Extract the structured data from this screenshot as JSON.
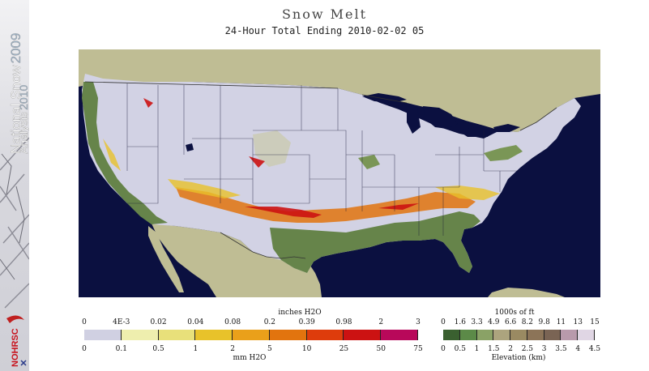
{
  "header": {
    "title": "Snow Melt",
    "subtitle": "24-Hour Total Ending 2010-02-02 05"
  },
  "sidebar": {
    "brand_prefix": "National Snow",
    "brand_year1": "2009",
    "brand_line2": "Analysis",
    "brand_year2": "2010",
    "logo_text": "NOHRSC"
  },
  "colors": {
    "ocean": "#0b1040",
    "land_other": "#bfbd94",
    "lakes": "#0b1040",
    "snow_background": "#d2d2e4",
    "lowland_green": "#66844a"
  },
  "melt_legend": {
    "unit_top": "inches H2O",
    "unit_bottom": "mm H2O",
    "inch_labels": [
      "0",
      "4E-3",
      "0.02",
      "0.04",
      "0.08",
      "0.2",
      "0.39",
      "0.98",
      "2",
      "3"
    ],
    "mm_labels": [
      "0",
      "0.1",
      "0.5",
      "1",
      "2",
      "5",
      "10",
      "25",
      "50",
      "75"
    ],
    "colors": [
      "#d0d0e2",
      "#eeeeae",
      "#e8e07a",
      "#e8c22a",
      "#eaa01a",
      "#e2740e",
      "#de3c0c",
      "#cc1212",
      "#b8085a"
    ]
  },
  "elevation_legend": {
    "unit_top": "1000s of ft",
    "unit_bottom": "Elevation (km)",
    "ft_labels": [
      "0",
      "1.6",
      "3.3",
      "4.9",
      "6.6",
      "8.2",
      "9.8",
      "11",
      "13",
      "15"
    ],
    "km_labels": [
      "0",
      "0.5",
      "1",
      "1.5",
      "2",
      "2.5",
      "3",
      "3.5",
      "4",
      "4.5"
    ],
    "colors": [
      "#3a6030",
      "#5c8a48",
      "#8aa266",
      "#aca47e",
      "#9a8a62",
      "#8c7458",
      "#7a6454",
      "#b89aac",
      "#e0d6e4"
    ]
  }
}
